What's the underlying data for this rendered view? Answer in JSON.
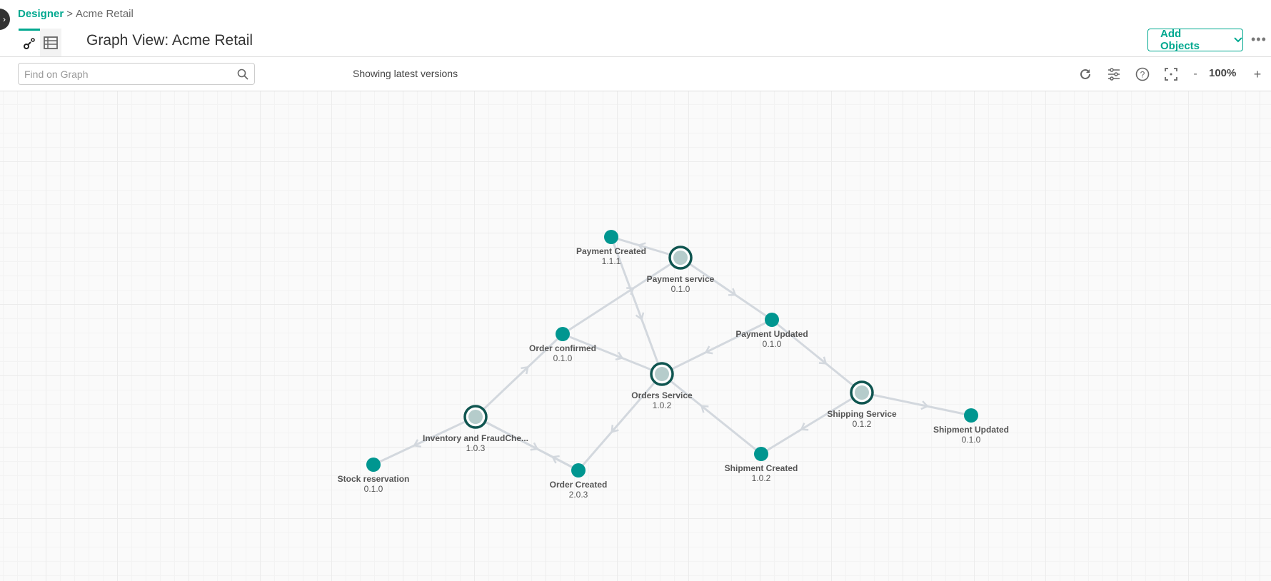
{
  "breadcrumb": {
    "root": "Designer",
    "separator": ">",
    "current": "Acme Retail"
  },
  "title": "Graph View: Acme Retail",
  "tabs": [
    {
      "name": "graph",
      "icon": "graph-icon",
      "active": true
    },
    {
      "name": "table",
      "icon": "table-icon",
      "active": false
    }
  ],
  "header": {
    "add_objects_label": "Add Objects",
    "more_label": "•••"
  },
  "search": {
    "placeholder": "Find on Graph",
    "value": ""
  },
  "status_text": "Showing latest versions",
  "toolbar": {
    "zoom_out": "-",
    "zoom_level": "100%",
    "zoom_in": "+"
  },
  "colors": {
    "accent": "#00a88f",
    "event_node": "#009690",
    "service_ring": "#0f5550",
    "service_fill": "#b5cccb",
    "edge": "#d3d8de"
  },
  "graph": {
    "nodes": [
      {
        "id": "payment-created",
        "name": "Payment Created",
        "version": "1.1.1",
        "type": "event"
      },
      {
        "id": "payment-service",
        "name": "Payment service",
        "version": "0.1.0",
        "type": "service"
      },
      {
        "id": "payment-updated",
        "name": "Payment Updated",
        "version": "0.1.0",
        "type": "event"
      },
      {
        "id": "order-confirmed",
        "name": "Order confirmed",
        "version": "0.1.0",
        "type": "event"
      },
      {
        "id": "orders-service",
        "name": "Orders Service",
        "version": "1.0.2",
        "type": "service"
      },
      {
        "id": "inventory",
        "name": "Inventory and FraudChe...",
        "version": "1.0.3",
        "type": "service"
      },
      {
        "id": "stock-reservation",
        "name": "Stock reservation",
        "version": "0.1.0",
        "type": "event"
      },
      {
        "id": "order-created",
        "name": "Order Created",
        "version": "2.0.3",
        "type": "event"
      },
      {
        "id": "shipping-service",
        "name": "Shipping Service",
        "version": "0.1.2",
        "type": "service"
      },
      {
        "id": "shipment-updated",
        "name": "Shipment Updated",
        "version": "0.1.0",
        "type": "event"
      },
      {
        "id": "shipment-created",
        "name": "Shipment Created",
        "version": "1.0.2",
        "type": "event"
      }
    ],
    "edges": [
      {
        "from": "payment-service",
        "to": "payment-created"
      },
      {
        "from": "payment-service",
        "to": "payment-updated"
      },
      {
        "from": "payment-created",
        "to": "orders-service"
      },
      {
        "from": "order-confirmed",
        "to": "payment-service"
      },
      {
        "from": "order-confirmed",
        "to": "orders-service"
      },
      {
        "from": "payment-updated",
        "to": "orders-service"
      },
      {
        "from": "payment-updated",
        "to": "shipping-service"
      },
      {
        "from": "inventory",
        "to": "order-confirmed"
      },
      {
        "from": "inventory",
        "to": "stock-reservation"
      },
      {
        "from": "inventory",
        "to": "order-created"
      },
      {
        "from": "order-created",
        "to": "inventory"
      },
      {
        "from": "orders-service",
        "to": "order-created"
      },
      {
        "from": "shipment-created",
        "to": "orders-service"
      },
      {
        "from": "shipping-service",
        "to": "shipment-created"
      },
      {
        "from": "shipping-service",
        "to": "shipment-updated"
      }
    ]
  }
}
